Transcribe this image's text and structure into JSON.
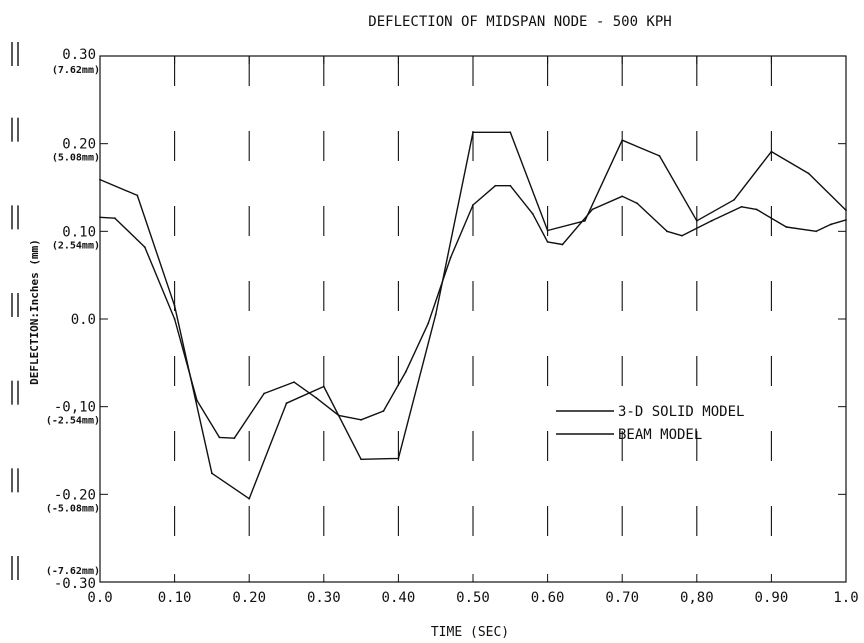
{
  "chart_data": {
    "type": "line",
    "title": "DEFLECTION OF MIDSPAN NODE - 500 KPH",
    "xlabel": "TIME (SEC)",
    "ylabel": "DEFLECTION:Inches (mm)",
    "xlim": [
      0.0,
      1.0
    ],
    "ylim": [
      -0.3,
      0.3
    ],
    "x_ticks": [
      "0.0",
      "0.10",
      "0.20",
      "0.30",
      "0.40",
      "0.50",
      "0.60",
      "0.70",
      "0,80",
      "0.90",
      "1.0"
    ],
    "y_ticks": [
      {
        "value": 0.3,
        "label": "0.30",
        "sub": "(7.62mm)"
      },
      {
        "value": 0.2,
        "label": "0.20",
        "sub": "(5.08mm)"
      },
      {
        "value": 0.1,
        "label": "0.10",
        "sub": "(2.54mm)"
      },
      {
        "value": 0.0,
        "label": "0.0",
        "sub": ""
      },
      {
        "value": -0.1,
        "label": "-0,10",
        "sub": "(-2.54mm)"
      },
      {
        "value": -0.2,
        "label": "-0.20",
        "sub": "(-5.08mm)"
      },
      {
        "value": -0.3,
        "label": "-0.30",
        "sub": "(-7.62mm)"
      }
    ],
    "grid": "dashed vertical",
    "legend_position": "right",
    "series": [
      {
        "name": "3-D SOLID MODEL",
        "x": [
          0.0,
          0.05,
          0.1,
          0.15,
          0.2,
          0.25,
          0.3,
          0.35,
          0.4,
          0.45,
          0.5,
          0.55,
          0.6,
          0.65,
          0.7,
          0.75,
          0.8,
          0.85,
          0.9,
          0.95,
          1.0
        ],
        "values": [
          0.159,
          0.141,
          0.015,
          -0.176,
          -0.205,
          -0.096,
          -0.077,
          -0.16,
          -0.159,
          0.005,
          0.213,
          0.213,
          0.101,
          0.112,
          0.204,
          0.186,
          0.112,
          0.136,
          0.191,
          0.166,
          0.124
        ]
      },
      {
        "name": "BEAM MODEL",
        "x": [
          0.0,
          0.02,
          0.06,
          0.1,
          0.13,
          0.16,
          0.18,
          0.22,
          0.26,
          0.29,
          0.32,
          0.35,
          0.38,
          0.41,
          0.44,
          0.47,
          0.5,
          0.53,
          0.55,
          0.58,
          0.6,
          0.62,
          0.66,
          0.7,
          0.72,
          0.76,
          0.78,
          0.82,
          0.86,
          0.88,
          0.92,
          0.96,
          0.98,
          1.0
        ],
        "values": [
          0.116,
          0.115,
          0.082,
          0.0,
          -0.093,
          -0.135,
          -0.136,
          -0.085,
          -0.072,
          -0.09,
          -0.11,
          -0.115,
          -0.105,
          -0.06,
          -0.005,
          0.07,
          0.13,
          0.152,
          0.152,
          0.12,
          0.088,
          0.085,
          0.125,
          0.14,
          0.132,
          0.1,
          0.095,
          0.112,
          0.128,
          0.125,
          0.105,
          0.1,
          0.108,
          0.113
        ]
      }
    ]
  }
}
